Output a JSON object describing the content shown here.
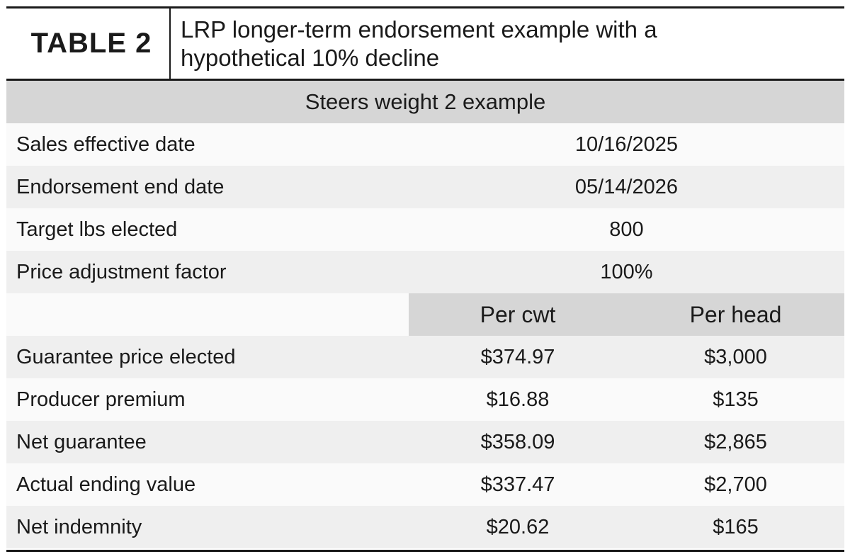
{
  "header": {
    "tag": "TABLE 2",
    "title": "LRP longer-term endorsement example with a\nhypothetical 10% decline"
  },
  "section_title": "Steers weight 2 example",
  "info_rows": [
    {
      "label": "Sales effective date",
      "value": "10/16/2025"
    },
    {
      "label": "Endorsement end date",
      "value": "05/14/2026"
    },
    {
      "label": "Target lbs elected",
      "value": "800"
    },
    {
      "label": "Price adjustment factor",
      "value": "100%"
    }
  ],
  "columns": [
    "Per cwt",
    "Per head"
  ],
  "value_rows": [
    {
      "label": "Guarantee price elected",
      "per_cwt": "$374.97",
      "per_head": "$3,000"
    },
    {
      "label": "Producer premium",
      "per_cwt": "$16.88",
      "per_head": "$135"
    },
    {
      "label": "Net guarantee",
      "per_cwt": "$358.09",
      "per_head": "$2,865"
    },
    {
      "label": "Actual ending value",
      "per_cwt": "$337.47",
      "per_head": "$2,700"
    },
    {
      "label": "Net indemnity",
      "per_cwt": "$20.62",
      "per_head": "$165"
    }
  ]
}
